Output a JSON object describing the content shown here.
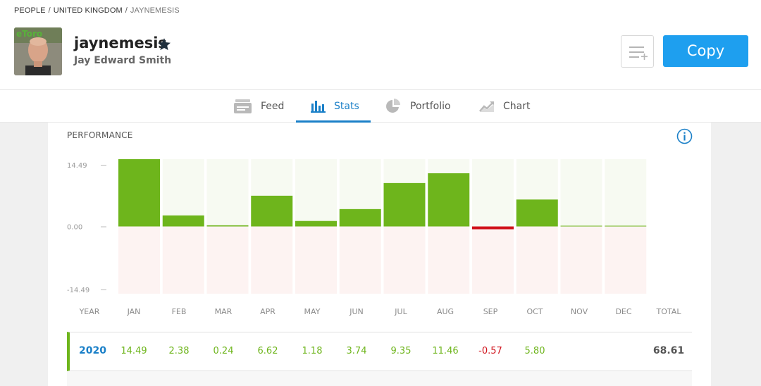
{
  "breadcrumb": {
    "items": [
      "PEOPLE",
      "UNITED KINGDOM",
      "JAYNEMESIS"
    ],
    "separator": "/"
  },
  "profile": {
    "username": "jaynemesis",
    "full_name": "Jay Edward Smith",
    "avatar_icon": "user-photo",
    "star_icon": "star-icon"
  },
  "actions": {
    "copy_label": "Copy",
    "watchlist_icon": "watchlist-add-icon"
  },
  "tabs": [
    {
      "label": "Feed",
      "icon": "feed-icon",
      "active": false
    },
    {
      "label": "Stats",
      "icon": "bar-chart-icon",
      "active": true
    },
    {
      "label": "Portfolio",
      "icon": "pie-chart-icon",
      "active": false
    },
    {
      "label": "Chart",
      "icon": "line-chart-icon",
      "active": false
    }
  ],
  "performance": {
    "title": "PERFORMANCE",
    "info_icon": "info-icon",
    "columns": [
      "YEAR",
      "JAN",
      "FEB",
      "MAR",
      "APR",
      "MAY",
      "JUN",
      "JUL",
      "AUG",
      "SEP",
      "OCT",
      "NOV",
      "DEC",
      "TOTAL"
    ],
    "rows": [
      {
        "year": "2020",
        "values": [
          "14.49",
          "2.38",
          "0.24",
          "6.62",
          "1.18",
          "3.74",
          "9.35",
          "11.46",
          "-0.57",
          "5.80",
          "",
          ""
        ],
        "total": "68.61"
      }
    ]
  },
  "chart_data": {
    "type": "bar",
    "categories": [
      "JAN",
      "FEB",
      "MAR",
      "APR",
      "MAY",
      "JUN",
      "JUL",
      "AUG",
      "SEP",
      "OCT",
      "NOV",
      "DEC"
    ],
    "values": [
      14.49,
      2.38,
      0.24,
      6.62,
      1.18,
      3.74,
      9.35,
      11.46,
      -0.57,
      5.8,
      0.1,
      0.1
    ],
    "ytick_labels": [
      "14.49",
      "0.00",
      "-14.49"
    ],
    "ylim": [
      -14.49,
      14.49
    ],
    "colors": {
      "positive": "#6eb51c",
      "negative": "#d0121b",
      "pos_bg": "#f7faf2",
      "neg_bg": "#fdf3f2"
    },
    "title": "",
    "xlabel": "",
    "ylabel": ""
  },
  "colors": {
    "accent": "#1b80c8",
    "copy_button": "#1e9fef",
    "positive": "#6eb51c",
    "negative": "#d0121b"
  }
}
